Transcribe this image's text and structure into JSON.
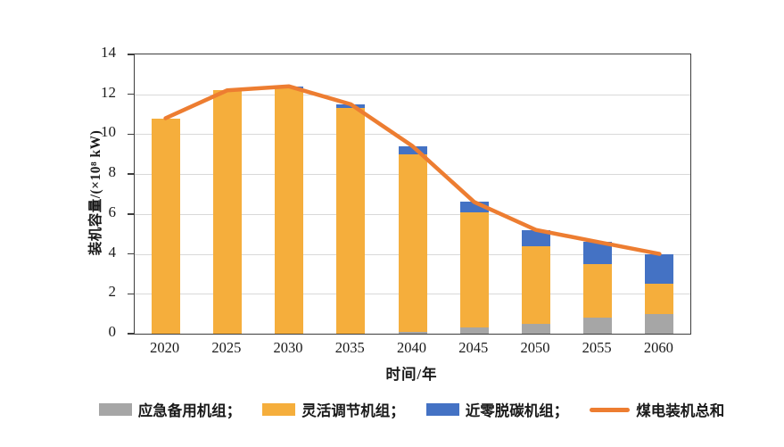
{
  "figure": {
    "background": "#FFFFFF",
    "text_color": "#1A1A1A",
    "axis_color": "#3D3D3D",
    "gridline_color": "#D9D9D9"
  },
  "chart_data": {
    "type": "bar",
    "subtype": "stacked-columns-with-total-line",
    "title": "",
    "xlabel": "时间/年",
    "ylabel": "装机容量/(×10⁸ kW)",
    "ylim": [
      0,
      14
    ],
    "yticks": [
      0,
      2,
      4,
      6,
      8,
      10,
      12,
      14
    ],
    "grid": "horizontal",
    "legend_position": "bottom",
    "categories": [
      "2020",
      "2025",
      "2030",
      "2035",
      "2040",
      "2045",
      "2050",
      "2055",
      "2060"
    ],
    "series": [
      {
        "name": "应急备用机组",
        "role": "bar-stack",
        "color": "#A6A6A6",
        "values": [
          0,
          0,
          0,
          0,
          0.1,
          0.3,
          0.5,
          0.8,
          1.0
        ]
      },
      {
        "name": "灵活调节机组",
        "role": "bar-stack",
        "color": "#F5AE3C",
        "values": [
          10.8,
          12.2,
          12.3,
          11.3,
          8.9,
          5.8,
          3.9,
          2.7,
          1.5
        ]
      },
      {
        "name": "近零脱碳机组",
        "role": "bar-stack",
        "color": "#4472C4",
        "values": [
          0,
          0,
          0.1,
          0.2,
          0.4,
          0.5,
          0.8,
          1.1,
          1.5
        ]
      }
    ],
    "line_series": {
      "name": "煤电装机总和",
      "role": "line",
      "color": "#ED7D31",
      "values": [
        10.8,
        12.2,
        12.4,
        11.5,
        9.4,
        6.6,
        5.2,
        4.6,
        4.0
      ]
    }
  },
  "legend": {
    "items": [
      {
        "label": "应急备用机组；",
        "swatch": "rect",
        "color": "#A6A6A6"
      },
      {
        "label": "灵活调节机组；",
        "swatch": "rect",
        "color": "#F5AE3C"
      },
      {
        "label": "近零脱碳机组；",
        "swatch": "rect",
        "color": "#4472C4"
      },
      {
        "label": "煤电装机总和",
        "swatch": "line",
        "color": "#ED7D31"
      }
    ]
  }
}
